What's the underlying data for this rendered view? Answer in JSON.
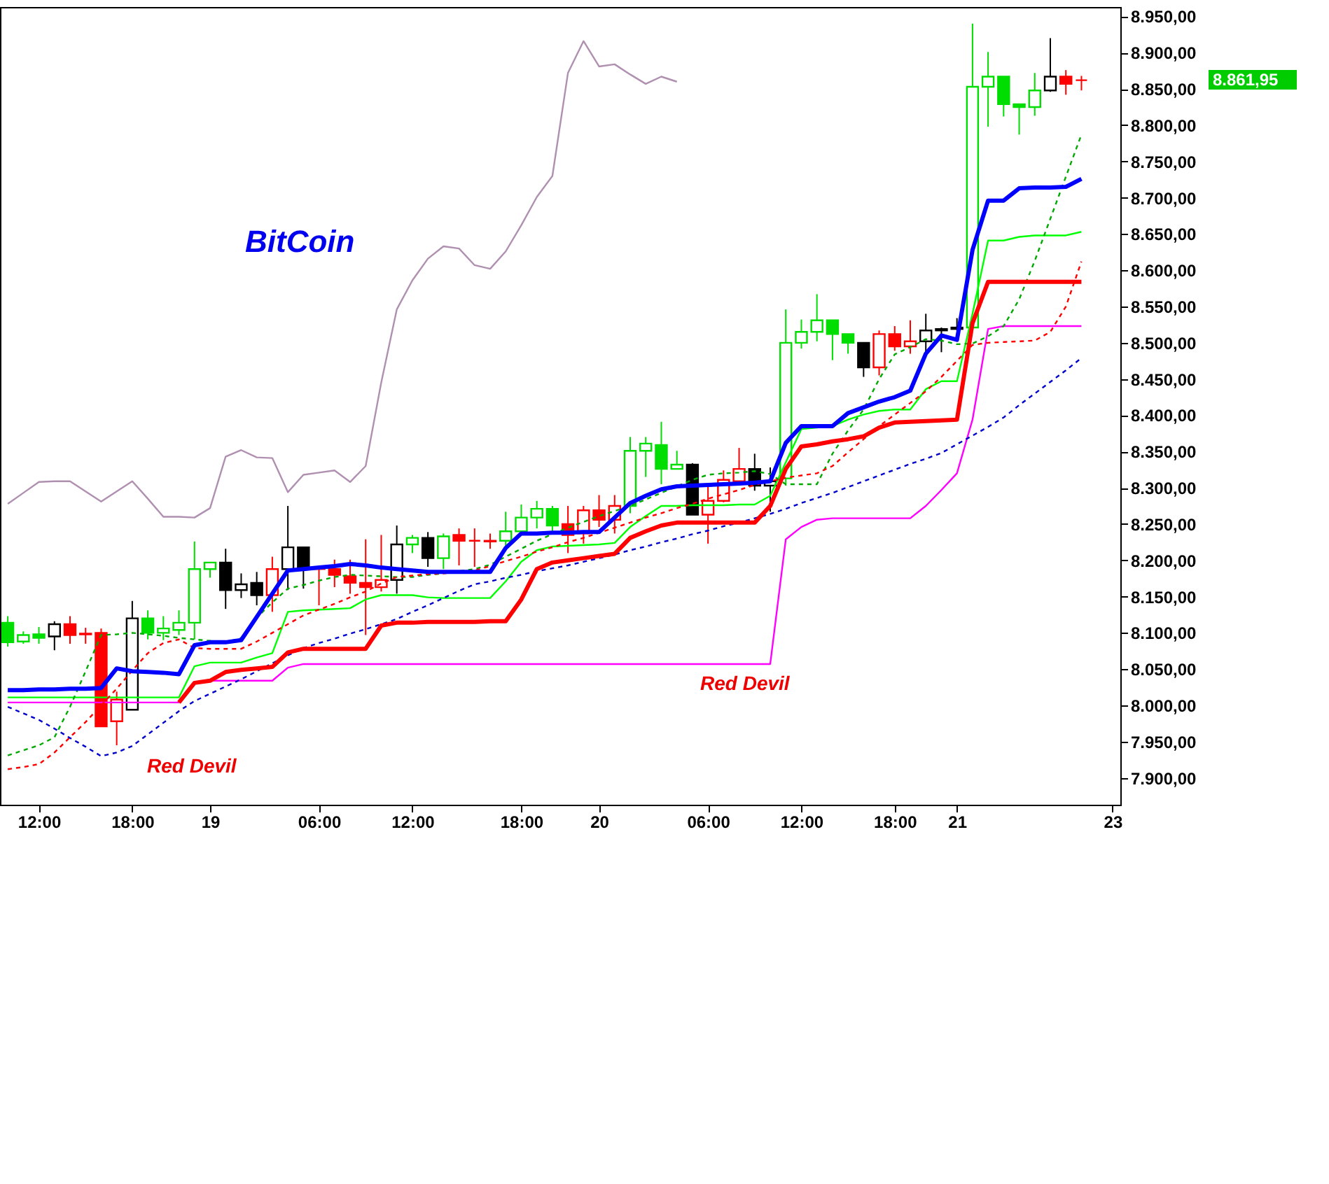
{
  "chart_data": {
    "type": "candlestick",
    "title": "BitCoin",
    "categories": [
      null,
      null,
      "12:00",
      null,
      null,
      null,
      null,
      null,
      "18:00",
      null,
      null,
      null,
      null,
      "19",
      null,
      null,
      null,
      null,
      null,
      null,
      "06:00",
      null,
      null,
      null,
      null,
      null,
      "12:00",
      null,
      null,
      null,
      null,
      null,
      null,
      "18:00",
      null,
      null,
      null,
      null,
      "20",
      null,
      null,
      null,
      null,
      null,
      null,
      "06:00",
      null,
      null,
      null,
      null,
      null,
      "12:00",
      null,
      null,
      null,
      null,
      null,
      "18:00",
      null,
      null,
      null,
      "21",
      null,
      null,
      null,
      null,
      null,
      null,
      null,
      null,
      null,
      "23"
    ],
    "ohlc": [
      [
        8114,
        8123,
        8081,
        8087
      ],
      [
        8088,
        8102,
        8085,
        8097
      ],
      [
        8098,
        8108,
        8085,
        8093
      ],
      [
        8095,
        8116,
        8076,
        8112
      ],
      [
        8112,
        8123,
        8085,
        8097
      ],
      [
        8099,
        8107,
        8085,
        8098
      ],
      [
        8100,
        8106,
        7971,
        7971
      ],
      [
        7978,
        8019,
        7945,
        8008
      ],
      [
        7994,
        8144,
        7994,
        8120
      ],
      [
        8120,
        8131,
        8091,
        8100
      ],
      [
        8100,
        8123,
        8090,
        8106
      ],
      [
        8104,
        8131,
        8097,
        8114
      ],
      [
        8114,
        8226,
        8091,
        8188
      ],
      [
        8188,
        8197,
        8176,
        8197
      ],
      [
        8197,
        8216,
        8133,
        8159
      ],
      [
        8159,
        8182,
        8148,
        8167
      ],
      [
        8169,
        8184,
        8138,
        8152
      ],
      [
        8152,
        8205,
        8129,
        8188
      ],
      [
        8188,
        8275,
        8159,
        8218
      ],
      [
        8218,
        8218,
        8161,
        8188
      ],
      [
        8190,
        8191,
        8138,
        8188
      ],
      [
        8188,
        8201,
        8163,
        8180
      ],
      [
        8178,
        8201,
        8154,
        8169
      ],
      [
        8169,
        8229,
        8097,
        8163
      ],
      [
        8163,
        8235,
        8157,
        8173
      ],
      [
        8173,
        8248,
        8154,
        8222
      ],
      [
        8222,
        8235,
        8210,
        8231
      ],
      [
        8231,
        8239,
        8191,
        8203
      ],
      [
        8203,
        8237,
        8188,
        8233
      ],
      [
        8235,
        8244,
        8193,
        8227
      ],
      [
        8227,
        8244,
        8191,
        8227
      ],
      [
        8227,
        8237,
        8216,
        8226
      ],
      [
        8227,
        8267,
        8218,
        8240
      ],
      [
        8240,
        8277,
        8235,
        8259
      ],
      [
        8259,
        8282,
        8244,
        8271
      ],
      [
        8271,
        8275,
        8240,
        8248
      ],
      [
        8250,
        8275,
        8210,
        8235
      ],
      [
        8237,
        8275,
        8223,
        8269
      ],
      [
        8269,
        8290,
        8246,
        8256
      ],
      [
        8256,
        8290,
        8237,
        8275
      ],
      [
        8275,
        8370,
        8265,
        8351
      ],
      [
        8351,
        8370,
        8315,
        8361
      ],
      [
        8359,
        8391,
        8305,
        8326
      ],
      [
        8326,
        8351,
        8326,
        8332
      ],
      [
        8332,
        8334,
        8263,
        8263
      ],
      [
        8263,
        8303,
        8223,
        8282
      ],
      [
        8282,
        8324,
        8280,
        8311
      ],
      [
        8309,
        8355,
        8307,
        8326
      ],
      [
        8326,
        8347,
        8296,
        8303
      ],
      [
        8303,
        8328,
        8267,
        8309
      ],
      [
        8313,
        8546,
        8303,
        8500
      ],
      [
        8500,
        8532,
        8492,
        8515
      ],
      [
        8515,
        8567,
        8502,
        8531
      ],
      [
        8531,
        8531,
        8476,
        8512
      ],
      [
        8512,
        8512,
        8485,
        8500
      ],
      [
        8500,
        8500,
        8453,
        8466
      ],
      [
        8466,
        8517,
        8455,
        8512
      ],
      [
        8512,
        8523,
        8489,
        8495
      ],
      [
        8495,
        8531,
        8485,
        8502
      ],
      [
        8502,
        8540,
        8487,
        8517
      ],
      [
        8517,
        8521,
        8487,
        8519
      ],
      [
        8521,
        8534,
        8517,
        8519
      ],
      [
        8521,
        8940,
        8519,
        8853
      ],
      [
        8853,
        8901,
        8798,
        8867
      ],
      [
        8867,
        8867,
        8812,
        8829
      ],
      [
        8829,
        8829,
        8787,
        8825
      ],
      [
        8825,
        8872,
        8813,
        8848
      ],
      [
        8848,
        8920,
        8846,
        8867
      ],
      [
        8867,
        8876,
        8842,
        8857
      ],
      [
        8862,
        8868,
        8848,
        8862
      ],
      null,
      null
    ],
    "colors": [
      "#00dd00",
      "#00dd00",
      "#00dd00",
      "#000000",
      "#ff0000",
      "#ff0000",
      "#ff0000",
      "#ff0000",
      "#000000",
      "#00dd00",
      "#00dd00",
      "#00dd00",
      "#00dd00",
      "#00dd00",
      "#000000",
      "#000000",
      "#000000",
      "#ff0000",
      "#000000",
      "#000000",
      "#ff0000",
      "#ff0000",
      "#ff0000",
      "#ff0000",
      "#ff0000",
      "#000000",
      "#00dd00",
      "#000000",
      "#00dd00",
      "#ff0000",
      "#ff0000",
      "#ff0000",
      "#00dd00",
      "#00dd00",
      "#00dd00",
      "#00dd00",
      "#ff0000",
      "#ff0000",
      "#ff0000",
      "#ff0000",
      "#00dd00",
      "#00dd00",
      "#00dd00",
      "#00dd00",
      "#000000",
      "#ff0000",
      "#ff0000",
      "#ff0000",
      "#000000",
      "#000000",
      "#00dd00",
      "#00dd00",
      "#00dd00",
      "#00dd00",
      "#00dd00",
      "#000000",
      "#ff0000",
      "#ff0000",
      "#ff0000",
      "#000000",
      "#000000",
      "#000000",
      "#00dd00",
      "#00dd00",
      "#00dd00",
      "#00dd00",
      "#00dd00",
      "#000000",
      "#ff0000",
      "#ff0000",
      null,
      null
    ],
    "series": [
      {
        "type": "line",
        "color": "#b090b0",
        "line_style": "solid",
        "values": [
          8278,
          8293,
          8308,
          8309,
          8309,
          8295,
          8281,
          8295,
          8309,
          8285,
          8260,
          8260,
          8259,
          8272,
          8343,
          8352,
          8342,
          8341,
          8294,
          8318,
          8321,
          8324,
          8308,
          8330,
          8445,
          8546,
          8586,
          8616,
          8633,
          8630,
          8607,
          8602,
          8626,
          8662,
          8701,
          8730,
          8872,
          8916,
          8881,
          8884,
          8870,
          8857,
          8867,
          8860,
          null,
          null,
          null,
          null,
          null,
          null,
          null,
          null,
          null,
          null,
          null,
          null,
          null,
          null,
          null,
          null,
          null,
          null,
          null,
          null,
          null,
          null,
          null,
          null,
          null,
          null,
          null,
          null
        ]
      },
      {
        "type": "line",
        "color": "#ff00ff",
        "line_style": "solid",
        "values": [
          8004,
          8004,
          8004,
          8004,
          8004,
          8004,
          8004,
          8004,
          8004,
          8004,
          8004,
          8004,
          8031,
          8034,
          8034,
          8034,
          8034,
          8034,
          8052,
          8057,
          8057,
          8057,
          8057,
          8057,
          8057,
          8057,
          8057,
          8057,
          8057,
          8057,
          8057,
          8057,
          8057,
          8057,
          8057,
          8057,
          8057,
          8057,
          8057,
          8057,
          8057,
          8057,
          8057,
          8057,
          8057,
          8057,
          8057,
          8057,
          8057,
          8057,
          8229,
          8246,
          8256,
          8258,
          8258,
          8258,
          8258,
          8258,
          8258,
          8275,
          8297,
          8320,
          8394,
          8519,
          8523,
          8523,
          8523,
          8523,
          8523,
          8523,
          null,
          null
        ]
      },
      {
        "type": "line",
        "color": "#00ff00",
        "line_style": "solid",
        "values": [
          8011,
          8011,
          8011,
          8011,
          8011,
          8011,
          8011,
          8011,
          8011,
          8011,
          8011,
          8011,
          8054,
          8059,
          8059,
          8059,
          8066,
          8072,
          8129,
          8131,
          8132,
          8133,
          8134,
          8146,
          8152,
          8152,
          8152,
          8149,
          8148,
          8148,
          8148,
          8148,
          8171,
          8198,
          8214,
          8219,
          8220,
          8221,
          8222,
          8224,
          8246,
          8261,
          8275,
          8275,
          8276,
          8276,
          8276,
          8277,
          8277,
          8289,
          8335,
          8381,
          8383,
          8385,
          8394,
          8401,
          8406,
          8408,
          8408,
          8436,
          8447,
          8447,
          8540,
          8641,
          8641,
          8646,
          8648,
          8648,
          8648,
          8653,
          null,
          null
        ]
      },
      {
        "type": "line",
        "color": "#00aa00",
        "line_style": "dashed",
        "values": [
          7931,
          7938,
          7945,
          7956,
          7998,
          8047,
          8097,
          8098,
          8100,
          8098,
          8096,
          8093,
          8091,
          8089,
          8087,
          8093,
          8121,
          8142,
          8161,
          8166,
          8172,
          8177,
          8180,
          8179,
          8178,
          8177,
          8177,
          8180,
          8182,
          8185,
          8188,
          8194,
          8205,
          8216,
          8227,
          8236,
          8245,
          8253,
          8261,
          8268,
          8275,
          8284,
          8293,
          8302,
          8311,
          8318,
          8320,
          8321,
          8323,
          8319,
          8305,
          8305,
          8305,
          8347,
          8379,
          8408,
          8450,
          8484,
          8494,
          8505,
          8503,
          8498,
          8499,
          8509,
          8523,
          8560,
          8613,
          8671,
          8729,
          8787,
          null,
          null
        ]
      },
      {
        "type": "line",
        "color": "#ff0000",
        "line_style": "dashed",
        "values": [
          7912,
          7915,
          7919,
          7935,
          7956,
          7977,
          8000,
          8023,
          8048,
          8072,
          8086,
          8091,
          8079,
          8078,
          8078,
          8078,
          8088,
          8100,
          8112,
          8124,
          8132,
          8140,
          8149,
          8157,
          8168,
          8177,
          8179,
          8181,
          8182,
          8184,
          8186,
          8192,
          8199,
          8205,
          8212,
          8218,
          8225,
          8231,
          8238,
          8245,
          8252,
          8259,
          8265,
          8272,
          8278,
          8285,
          8291,
          8297,
          8304,
          8309,
          8314,
          8317,
          8320,
          8330,
          8349,
          8367,
          8385,
          8401,
          8417,
          8433,
          8453,
          8475,
          8497,
          8500,
          8501,
          8502,
          8503,
          8515,
          8550,
          8612,
          null,
          null
        ]
      },
      {
        "type": "line",
        "color": "#0000cc",
        "line_style": "dashed",
        "values": [
          7998,
          7989,
          7980,
          7968,
          7955,
          7943,
          7930,
          7935,
          7944,
          7960,
          7976,
          7992,
          8006,
          8016,
          8026,
          8036,
          8047,
          8058,
          8069,
          8079,
          8086,
          8092,
          8099,
          8105,
          8112,
          8119,
          8129,
          8138,
          8148,
          8158,
          8167,
          8171,
          8176,
          8180,
          8185,
          8189,
          8193,
          8198,
          8203,
          8208,
          8214,
          8219,
          8225,
          8230,
          8236,
          8241,
          8247,
          8252,
          8258,
          8264,
          8271,
          8279,
          8286,
          8293,
          8301,
          8309,
          8317,
          8325,
          8333,
          8340,
          8348,
          8360,
          8372,
          8384,
          8397,
          8414,
          8430,
          8446,
          8462,
          8479,
          null,
          null
        ]
      },
      {
        "type": "line",
        "color": "#ff0000",
        "line_style": "solid",
        "values": [
          null,
          null,
          null,
          null,
          null,
          null,
          null,
          null,
          null,
          null,
          null,
          8004,
          8031,
          8034,
          8046,
          8049,
          8051,
          8053,
          8073,
          8078,
          8078,
          8078,
          8078,
          8078,
          8110,
          8114,
          8114,
          8115,
          8115,
          8115,
          8115,
          8116,
          8116,
          8146,
          8188,
          8197,
          8200,
          8203,
          8206,
          8209,
          8231,
          8240,
          8248,
          8252,
          8252,
          8252,
          8252,
          8252,
          8252,
          8275,
          8326,
          8357,
          8360,
          8364,
          8367,
          8371,
          8383,
          8390,
          8391,
          8392,
          8393,
          8394,
          8527,
          8584,
          8584,
          8584,
          8584,
          8584,
          8584,
          8584,
          null,
          null
        ]
      },
      {
        "type": "line",
        "color": "#0000ff",
        "line_style": "solid",
        "values": [
          8021,
          8021,
          8022,
          8022,
          8023,
          8023,
          8024,
          8051,
          8047,
          8046,
          8045,
          8043,
          8083,
          8087,
          8087,
          8090,
          8122,
          8154,
          8186,
          8188,
          8190,
          8192,
          8195,
          8193,
          8190,
          8188,
          8186,
          8184,
          8184,
          8184,
          8184,
          8184,
          8217,
          8237,
          8237,
          8238,
          8238,
          8239,
          8239,
          8259,
          8279,
          8289,
          8298,
          8302,
          8303,
          8304,
          8305,
          8306,
          8307,
          8309,
          8362,
          8385,
          8385,
          8385,
          8403,
          8411,
          8419,
          8425,
          8434,
          8485,
          8510,
          8504,
          8628,
          8696,
          8696,
          8713,
          8714,
          8714,
          8715,
          8726,
          null,
          null
        ]
      }
    ],
    "ylim": [
      7863,
      8963
    ],
    "yticks": [
      {
        "value": 7900,
        "label": "7.900,00"
      },
      {
        "value": 7950,
        "label": "7.950,00"
      },
      {
        "value": 8000,
        "label": "8.000,00"
      },
      {
        "value": 8050,
        "label": "8.050,00"
      },
      {
        "value": 8100,
        "label": "8.100,00"
      },
      {
        "value": 8150,
        "label": "8.150,00"
      },
      {
        "value": 8200,
        "label": "8.200,00"
      },
      {
        "value": 8250,
        "label": "8.250,00"
      },
      {
        "value": 8300,
        "label": "8.300,00"
      },
      {
        "value": 8350,
        "label": "8.350,00"
      },
      {
        "value": 8400,
        "label": "8.400,00"
      },
      {
        "value": 8450,
        "label": "8.450,00"
      },
      {
        "value": 8500,
        "label": "8.500,00"
      },
      {
        "value": 8550,
        "label": "8.550,00"
      },
      {
        "value": 8600,
        "label": "8.600,00"
      },
      {
        "value": 8650,
        "label": "8.650,00"
      },
      {
        "value": 8700,
        "label": "8.700,00"
      },
      {
        "value": 8750,
        "label": "8.750,00"
      },
      {
        "value": 8800,
        "label": "8.800,00"
      },
      {
        "value": 8850,
        "label": "8.850,00"
      },
      {
        "value": 8900,
        "label": "8.900,00"
      },
      {
        "value": 8950,
        "label": "8.950,00"
      }
    ],
    "annotations": [
      "Red Devil",
      "Red Devil",
      "8.861,95"
    ],
    "grid": false
  }
}
